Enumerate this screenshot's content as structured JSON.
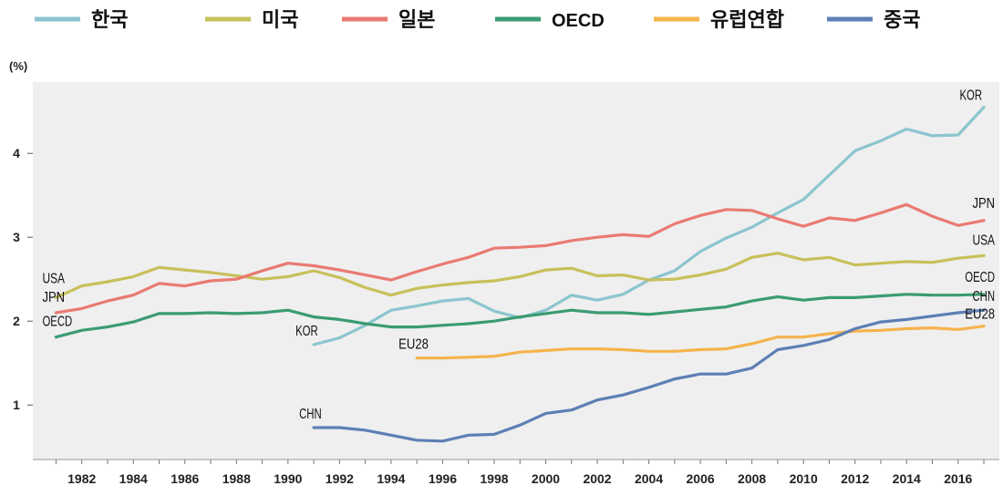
{
  "chart_data": {
    "type": "line",
    "ylabel": "(%)",
    "x": [
      1981,
      1982,
      1983,
      1984,
      1985,
      1986,
      1987,
      1988,
      1989,
      1990,
      1991,
      1992,
      1993,
      1994,
      1995,
      1996,
      1997,
      1998,
      1999,
      2000,
      2001,
      2002,
      2003,
      2004,
      2005,
      2006,
      2007,
      2008,
      2009,
      2010,
      2011,
      2012,
      2013,
      2014,
      2015,
      2016,
      2017
    ],
    "x_ticks": [
      "1982",
      "1984",
      "1986",
      "1988",
      "1990",
      "1992",
      "1994",
      "1996",
      "1998",
      "2000",
      "2002",
      "2004",
      "2006",
      "2008",
      "2010",
      "2012",
      "2014",
      "2016"
    ],
    "y_ticks": [
      "1",
      "2",
      "3",
      "4"
    ],
    "xlim": [
      1980.1,
      2017.6
    ],
    "ylim": [
      0.35,
      4.85
    ],
    "grid": false,
    "legend_position": "top",
    "series": [
      {
        "legend": "한국",
        "label": "KOR",
        "color": "#8cc5cf",
        "values": [
          null,
          null,
          null,
          null,
          null,
          null,
          null,
          null,
          null,
          null,
          1.72,
          1.8,
          1.95,
          2.13,
          2.18,
          2.24,
          2.27,
          2.12,
          2.04,
          2.13,
          2.31,
          2.25,
          2.32,
          2.49,
          2.6,
          2.83,
          2.99,
          3.12,
          3.29,
          3.45,
          3.74,
          4.03,
          4.15,
          4.29,
          4.21,
          4.22,
          4.55
        ]
      },
      {
        "legend": "미국",
        "label": "USA",
        "color": "#c8c05a",
        "values": [
          2.28,
          2.42,
          2.47,
          2.53,
          2.64,
          2.61,
          2.58,
          2.54,
          2.5,
          2.53,
          2.6,
          2.52,
          2.4,
          2.31,
          2.39,
          2.43,
          2.46,
          2.48,
          2.53,
          2.61,
          2.63,
          2.54,
          2.55,
          2.49,
          2.5,
          2.55,
          2.62,
          2.76,
          2.81,
          2.73,
          2.76,
          2.67,
          2.69,
          2.71,
          2.7,
          2.75,
          2.78
        ]
      },
      {
        "legend": "일본",
        "label": "JPN",
        "color": "#e97a72",
        "values": [
          2.1,
          2.15,
          2.24,
          2.31,
          2.45,
          2.42,
          2.48,
          2.5,
          2.6,
          2.69,
          2.66,
          2.61,
          2.55,
          2.49,
          2.59,
          2.68,
          2.76,
          2.87,
          2.88,
          2.9,
          2.96,
          3.0,
          3.03,
          3.01,
          3.16,
          3.26,
          3.33,
          3.32,
          3.22,
          3.13,
          3.23,
          3.2,
          3.29,
          3.39,
          3.25,
          3.14,
          3.2
        ]
      },
      {
        "legend": "OECD",
        "label": "OECD",
        "color": "#3b9b72",
        "values": [
          1.81,
          1.89,
          1.93,
          1.99,
          2.09,
          2.09,
          2.1,
          2.09,
          2.1,
          2.13,
          2.05,
          2.02,
          1.97,
          1.93,
          1.93,
          1.95,
          1.97,
          2.0,
          2.05,
          2.09,
          2.13,
          2.1,
          2.1,
          2.08,
          2.11,
          2.14,
          2.17,
          2.24,
          2.29,
          2.25,
          2.28,
          2.28,
          2.3,
          2.32,
          2.31,
          2.31,
          2.32
        ]
      },
      {
        "legend": "유럽연합",
        "label": "EU28",
        "color": "#f6b34c",
        "values": [
          null,
          null,
          null,
          null,
          null,
          null,
          null,
          null,
          null,
          null,
          null,
          null,
          null,
          null,
          1.56,
          1.56,
          1.57,
          1.58,
          1.63,
          1.65,
          1.67,
          1.67,
          1.66,
          1.64,
          1.64,
          1.66,
          1.67,
          1.73,
          1.81,
          1.81,
          1.85,
          1.88,
          1.89,
          1.91,
          1.92,
          1.9,
          1.94
        ]
      },
      {
        "legend": "중국",
        "label": "CHN",
        "color": "#5d7fb5",
        "values": [
          null,
          null,
          null,
          null,
          null,
          null,
          null,
          null,
          null,
          null,
          0.73,
          0.73,
          0.7,
          0.64,
          0.58,
          0.57,
          0.64,
          0.65,
          0.76,
          0.9,
          0.94,
          1.06,
          1.12,
          1.21,
          1.31,
          1.37,
          1.37,
          1.44,
          1.66,
          1.71,
          1.78,
          1.91,
          1.99,
          2.02,
          2.06,
          2.1,
          2.13
        ]
      }
    ]
  }
}
